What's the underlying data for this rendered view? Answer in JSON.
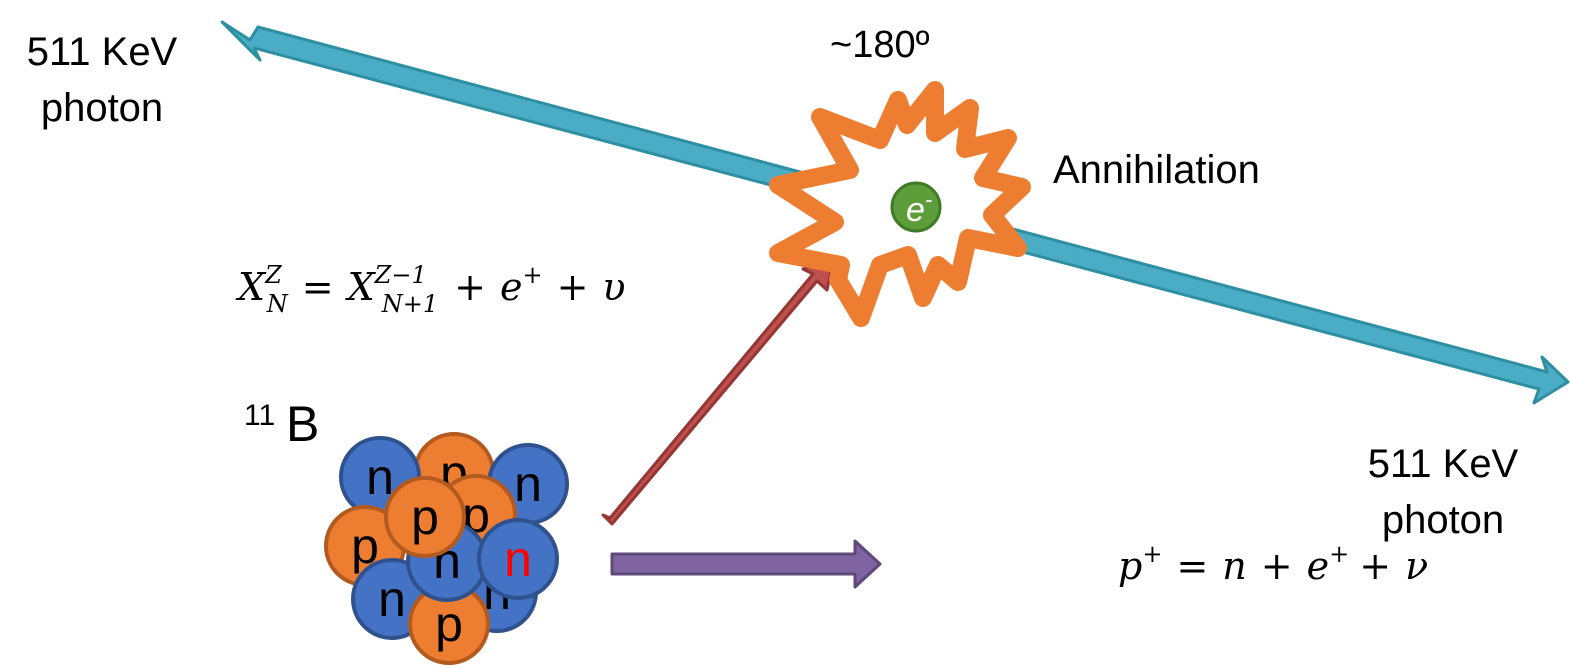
{
  "colors": {
    "photon_arrow": "#4BACC6",
    "photon_arrow_edge": "#2E8FA3",
    "positron_arrow": "#C0504D",
    "positron_arrow_edge": "#943634",
    "decay_arrow": "#8064A2",
    "decay_arrow_edge": "#5F497A",
    "annihilation_burst": "#ED7D31",
    "electron": "#5E9E3A",
    "electron_edge": "#3F7A26",
    "proton": "#ED7D31",
    "proton_edge": "#B35A1F",
    "neutron": "#4472C4",
    "neutron_edge": "#2F528F",
    "highlight_neutron_text": "#FF0000"
  },
  "labels": {
    "photon_left_line1": "511 KeV",
    "photon_left_line2": "photon",
    "photon_right_line1": "511 KeV",
    "photon_right_line2": "photon",
    "angle": "~180º",
    "annihilation": "Annihilation",
    "electron": "e",
    "electron_sup": "-",
    "isotope_mass": "11",
    "isotope_symbol": "B"
  },
  "equations": {
    "beta_plus_decay": {
      "lhs_base": "X",
      "lhs_sub": "N",
      "lhs_sup": "Z",
      "equals": "=",
      "rhs_base": "X",
      "rhs_sub": "N+1",
      "rhs_sup": "Z−1",
      "plus1": "+",
      "positron": "e",
      "positron_sup": "+",
      "plus2": "+",
      "neutrino": "υ"
    },
    "proton_conversion": {
      "proton": "p",
      "proton_sup": "+",
      "equals": "=",
      "neutron": "n",
      "plus1": "+",
      "positron": "e",
      "positron_sup": "+",
      "plus2": "+",
      "neutrino": "ν"
    }
  },
  "nucleus": {
    "nucleons": [
      {
        "label": "p"
      },
      {
        "label": "n"
      },
      {
        "label": "n"
      },
      {
        "label": "p"
      },
      {
        "label": "p"
      },
      {
        "label": "n"
      },
      {
        "label": "n"
      },
      {
        "label": "p"
      },
      {
        "label": "n"
      },
      {
        "label": "p"
      },
      {
        "label": "n"
      }
    ]
  }
}
